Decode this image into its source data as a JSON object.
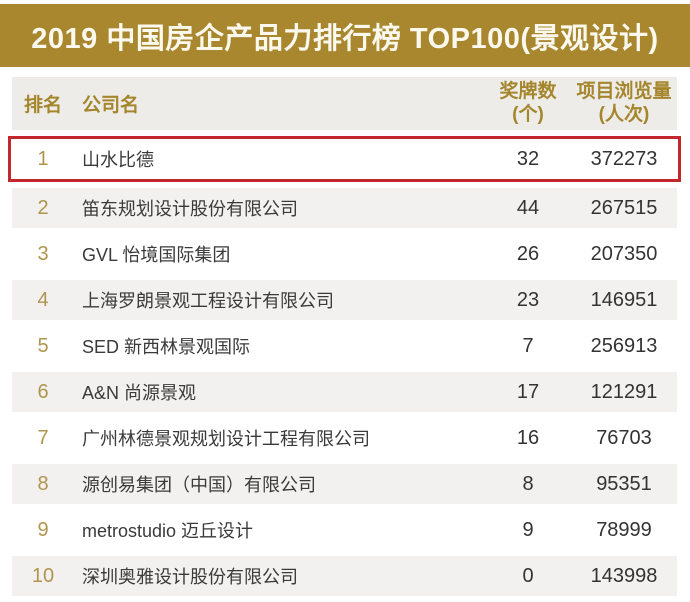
{
  "banner": {
    "title": "2019 中国房企产品力排行榜 TOP100(景观设计)",
    "bg_color": "#A8872F",
    "text_color": "#FBF8EE"
  },
  "table": {
    "headers": {
      "rank": "排名",
      "company": "公司名",
      "medals_title": "奖牌数",
      "medals_unit": "(个)",
      "views_title": "项目浏览量",
      "views_unit": "(人次)"
    },
    "rows": [
      {
        "rank": "1",
        "company": "山水比德",
        "medals": "32",
        "views": "372273",
        "highlighted": true
      },
      {
        "rank": "2",
        "company": "笛东规划设计股份有限公司",
        "medals": "44",
        "views": "267515",
        "highlighted": false
      },
      {
        "rank": "3",
        "company": "GVL 怡境国际集团",
        "medals": "26",
        "views": "207350",
        "highlighted": false
      },
      {
        "rank": "4",
        "company": "上海罗朗景观工程设计有限公司",
        "medals": "23",
        "views": "146951",
        "highlighted": false
      },
      {
        "rank": "5",
        "company": "SED 新西林景观国际",
        "medals": "7",
        "views": "256913",
        "highlighted": false
      },
      {
        "rank": "6",
        "company": "A&N 尚源景观",
        "medals": "17",
        "views": "121291",
        "highlighted": false
      },
      {
        "rank": "7",
        "company": "广州林德景观规划设计工程有限公司",
        "medals": "16",
        "views": "76703",
        "highlighted": false
      },
      {
        "rank": "8",
        "company": "源创易集团（中国）有限公司",
        "medals": "8",
        "views": "95351",
        "highlighted": false
      },
      {
        "rank": "9",
        "company": "metrostudio 迈丘设计",
        "medals": "9",
        "views": "78999",
        "highlighted": false
      },
      {
        "rank": "10",
        "company": "深圳奥雅设计股份有限公司",
        "medals": "0",
        "views": "143998",
        "highlighted": false
      }
    ],
    "colors": {
      "accent_gold": "#A8872F",
      "header_bg": "#EDECE8",
      "header_text": "#A5862D",
      "stripe_bg": "#F2F1EF",
      "rank_gold": "#B0954F",
      "highlight_border": "#C2272B",
      "body_text": "#3A3A3A"
    }
  },
  "chart_data": {
    "type": "table",
    "title": "2019 中国房企产品力排行榜 TOP100(景观设计)",
    "columns": [
      "排名",
      "公司名",
      "奖牌数(个)",
      "项目浏览量(人次)"
    ],
    "rows": [
      [
        1,
        "山水比德",
        32,
        372273
      ],
      [
        2,
        "笛东规划设计股份有限公司",
        44,
        267515
      ],
      [
        3,
        "GVL 怡境国际集团",
        26,
        207350
      ],
      [
        4,
        "上海罗朗景观工程设计有限公司",
        23,
        146951
      ],
      [
        5,
        "SED 新西林景观国际",
        7,
        256913
      ],
      [
        6,
        "A&N 尚源景观",
        17,
        121291
      ],
      [
        7,
        "广州林德景观规划设计工程有限公司",
        16,
        76703
      ],
      [
        8,
        "源创易集团（中国）有限公司",
        8,
        95351
      ],
      [
        9,
        "metrostudio 迈丘设计",
        9,
        78999
      ],
      [
        10,
        "深圳奥雅设计股份有限公司",
        0,
        143998
      ]
    ],
    "highlighted_row_rank": 1
  }
}
